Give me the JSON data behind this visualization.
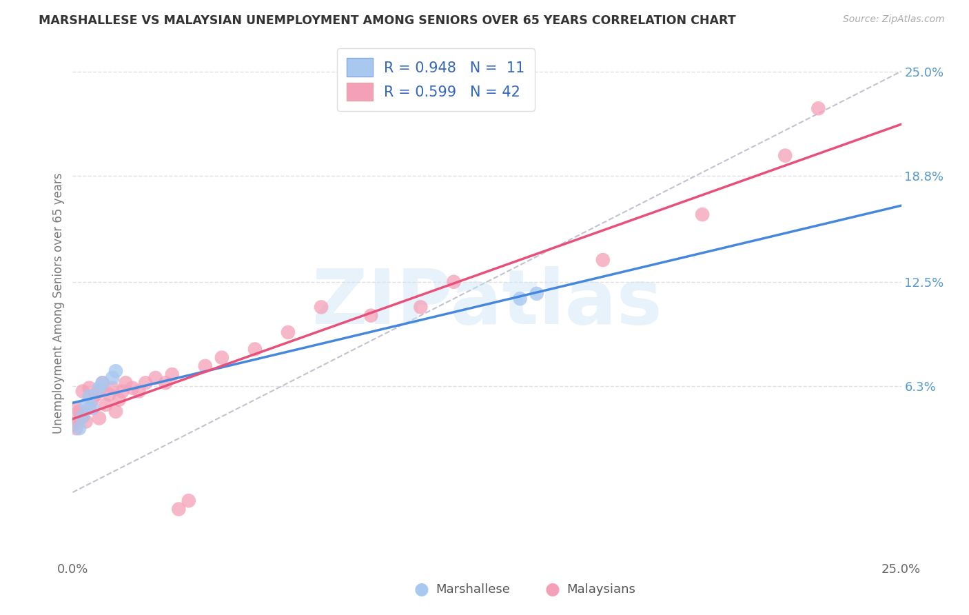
{
  "title": "MARSHALLESE VS MALAYSIAN UNEMPLOYMENT AMONG SENIORS OVER 65 YEARS CORRELATION CHART",
  "source": "Source: ZipAtlas.com",
  "ylabel": "Unemployment Among Seniors over 65 years",
  "xlim": [
    0,
    0.25
  ],
  "ylim": [
    -0.04,
    0.265
  ],
  "marshallese_color": "#a8c8f0",
  "malaysian_color": "#f4a0b8",
  "marshallese_line_color": "#4488dd",
  "malaysian_line_color": "#e8507a",
  "r_marshallese": "0.948",
  "n_marshallese": "11",
  "r_malaysian": "0.599",
  "n_malaysian": "42",
  "background_color": "#ffffff",
  "grid_color": "#e0e0e0",
  "ytick_right_labels": [
    "6.3%",
    "12.5%",
    "18.8%",
    "25.0%"
  ],
  "ytick_right_positions": [
    0.063,
    0.125,
    0.188,
    0.25
  ],
  "watermark_text": "ZIPatlas",
  "marshallese_x": [
    0.002,
    0.003,
    0.004,
    0.005,
    0.006,
    0.008,
    0.009,
    0.012,
    0.013,
    0.135,
    0.14
  ],
  "marshallese_y": [
    0.038,
    0.045,
    0.052,
    0.057,
    0.05,
    0.062,
    0.065,
    0.068,
    0.072,
    0.115,
    0.118
  ],
  "malaysian_x": [
    0.0,
    0.0,
    0.001,
    0.001,
    0.002,
    0.003,
    0.003,
    0.004,
    0.005,
    0.005,
    0.006,
    0.007,
    0.008,
    0.008,
    0.009,
    0.01,
    0.011,
    0.012,
    0.013,
    0.014,
    0.015,
    0.016,
    0.018,
    0.02,
    0.022,
    0.025,
    0.028,
    0.03,
    0.032,
    0.035,
    0.04,
    0.045,
    0.055,
    0.065,
    0.075,
    0.09,
    0.105,
    0.115,
    0.16,
    0.19,
    0.215,
    0.225
  ],
  "malaysian_y": [
    0.04,
    0.042,
    0.038,
    0.05,
    0.048,
    0.045,
    0.06,
    0.042,
    0.05,
    0.062,
    0.055,
    0.058,
    0.044,
    0.06,
    0.065,
    0.052,
    0.058,
    0.062,
    0.048,
    0.055,
    0.06,
    0.065,
    0.062,
    0.06,
    0.065,
    0.068,
    0.065,
    0.07,
    -0.01,
    -0.005,
    0.075,
    0.08,
    0.085,
    0.095,
    0.11,
    0.105,
    0.11,
    0.125,
    0.138,
    0.165,
    0.2,
    0.228
  ]
}
